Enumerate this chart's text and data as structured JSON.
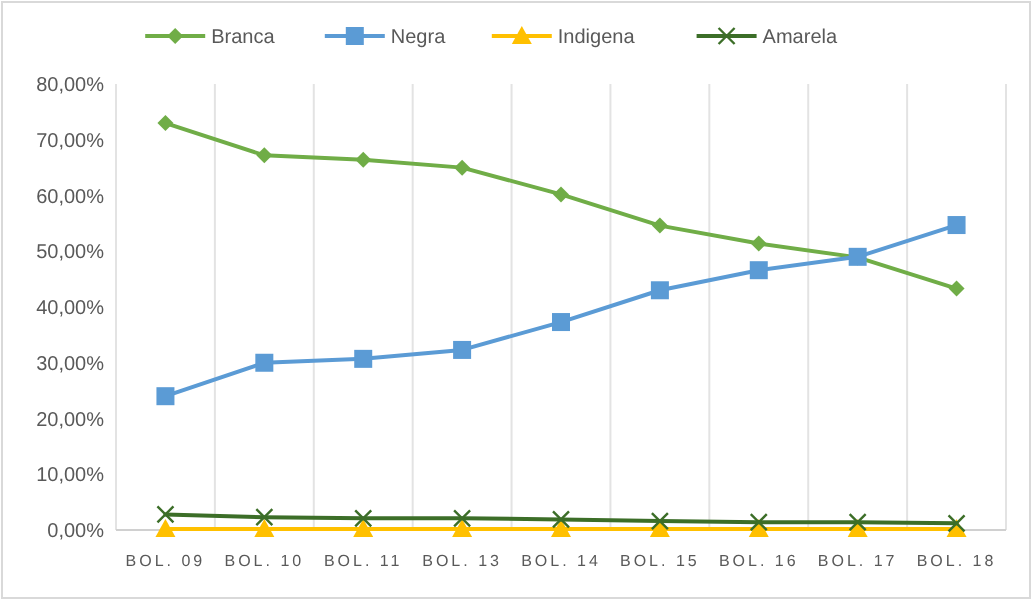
{
  "chart_data": {
    "type": "line",
    "categories": [
      "BOL. 09",
      "BOL. 10",
      "BOL. 11",
      "BOL. 13",
      "BOL. 14",
      "BOL. 15",
      "BOL. 16",
      "BOL. 17",
      "BOL. 18"
    ],
    "series": [
      {
        "name": "Branca",
        "color": "#70ad47",
        "marker": "diamond",
        "values": [
          73,
          67.2,
          66.4,
          65,
          60.2,
          54.6,
          51.4,
          48.9,
          43.3
        ]
      },
      {
        "name": "Negra",
        "color": "#5b9bd5",
        "marker": "square",
        "values": [
          24,
          30,
          30.7,
          32.3,
          37.3,
          43,
          46.6,
          49,
          54.7
        ]
      },
      {
        "name": "Indigena",
        "color": "#ffc000",
        "marker": "triangle",
        "values": [
          0.2,
          0.2,
          0.2,
          0.2,
          0.2,
          0.2,
          0.2,
          0.2,
          0.2
        ]
      },
      {
        "name": "Amarela",
        "color": "#3c6e28",
        "marker": "cross",
        "values": [
          2.8,
          2.3,
          2.1,
          2.1,
          1.9,
          1.6,
          1.4,
          1.4,
          1.2
        ]
      }
    ],
    "ylim": [
      0,
      80
    ],
    "yticks": [
      {
        "value": 0,
        "label": "0,00%"
      },
      {
        "value": 10,
        "label": "10,00%"
      },
      {
        "value": 20,
        "label": "20,00%"
      },
      {
        "value": 30,
        "label": "30,00%"
      },
      {
        "value": 40,
        "label": "40,00%"
      },
      {
        "value": 50,
        "label": "50,00%"
      },
      {
        "value": 60,
        "label": "60,00%"
      },
      {
        "value": 70,
        "label": "70,00%"
      },
      {
        "value": 80,
        "label": "80,00%"
      }
    ],
    "grid": "x",
    "legend": "top",
    "line_style": "solid"
  }
}
